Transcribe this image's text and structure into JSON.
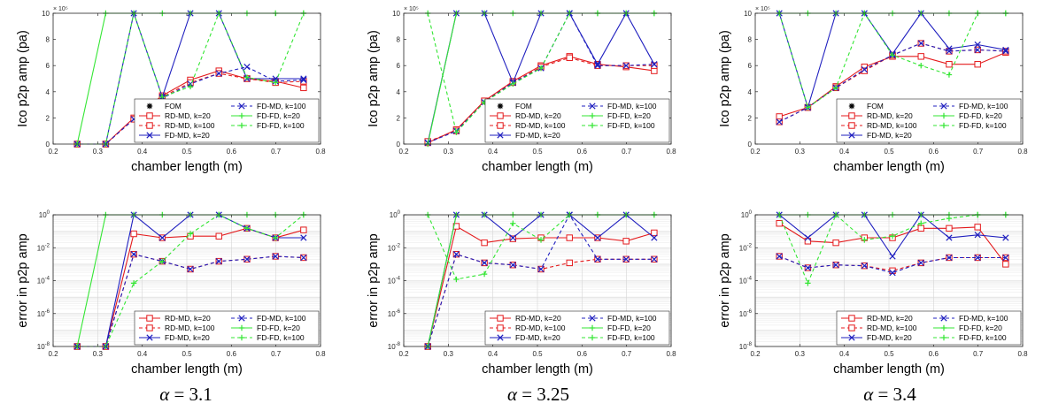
{
  "figure": {
    "captions": [
      {
        "symbol": "α",
        "value": "= 3.1"
      },
      {
        "symbol": "α",
        "value": "= 3.25"
      },
      {
        "symbol": "α",
        "value": "= 3.4"
      }
    ]
  },
  "styles": {
    "RD-MD, k=20": {
      "color": "#e41a1c",
      "dash": "solid",
      "marker": "square"
    },
    "RD-MD, k=100": {
      "color": "#e41a1c",
      "dash": "dashed",
      "marker": "square"
    },
    "FD-MD, k=20": {
      "color": "#1f1fbf",
      "dash": "solid",
      "marker": "x"
    },
    "FD-MD, k=100": {
      "color": "#1f1fbf",
      "dash": "dashed",
      "marker": "x"
    },
    "FD-FD, k=20": {
      "color": "#33e633",
      "dash": "solid",
      "marker": "plus"
    },
    "FD-FD, k=100": {
      "color": "#33e633",
      "dash": "dashed",
      "marker": "plus"
    },
    "FOM": {
      "color": "#000000",
      "dash": "none",
      "marker": "asterisk"
    }
  },
  "chart_data": [
    {
      "type": "line",
      "panel": "top",
      "column": 0,
      "xlabel": "chamber length (m)",
      "ylabel": "Ico p2p amp (pa)",
      "exponent_label": "× 10⁵",
      "xlim": [
        0.2,
        0.8
      ],
      "ylim": [
        0,
        10
      ],
      "xticks": [
        "0.2",
        "0.3",
        "0.4",
        "0.5",
        "0.6",
        "0.7",
        "0.8"
      ],
      "yticks": [
        "0",
        "2",
        "4",
        "6",
        "8",
        "10"
      ],
      "legend": [
        "FOM",
        "FD-MD, k=100",
        "RD-MD, k=20",
        "FD-FD, k=20",
        "RD-MD, k=100",
        "FD-FD, k=100",
        "FD-MD, k=20"
      ],
      "legend_position": "lower-right",
      "x": [
        0.254,
        0.318,
        0.381,
        0.445,
        0.508,
        0.572,
        0.635,
        0.699,
        0.762
      ],
      "series": [
        {
          "name": "FOM",
          "values": [
            0,
            0,
            2.0,
            3.5,
            4.5,
            5.4,
            5.0,
            4.8,
            4.8
          ]
        },
        {
          "name": "RD-MD, k=20",
          "values": [
            0,
            0,
            2.0,
            3.7,
            4.9,
            5.6,
            5.0,
            4.8,
            4.3
          ]
        },
        {
          "name": "RD-MD, k=100",
          "values": [
            0,
            0,
            1.9,
            3.6,
            4.7,
            5.4,
            5.0,
            4.7,
            4.8
          ]
        },
        {
          "name": "FD-MD, k=20",
          "values": [
            0,
            0,
            10,
            3.6,
            10,
            10,
            5.0,
            5.0,
            5.0
          ]
        },
        {
          "name": "FD-MD, k=100",
          "values": [
            0,
            0,
            1.9,
            3.5,
            4.6,
            5.4,
            5.9,
            4.8,
            4.9
          ]
        },
        {
          "name": "FD-FD, k=20",
          "values": [
            0,
            10,
            10,
            10,
            10,
            10,
            10,
            10,
            10
          ]
        },
        {
          "name": "FD-FD, k=100",
          "values": [
            0,
            0,
            10,
            3.6,
            4.4,
            10,
            5.1,
            4.7,
            10
          ]
        }
      ]
    },
    {
      "type": "line",
      "panel": "top",
      "column": 1,
      "xlabel": "chamber length (m)",
      "ylabel": "Ico p2p amp (pa)",
      "exponent_label": "× 10⁵",
      "xlim": [
        0.2,
        0.8
      ],
      "ylim": [
        0,
        10
      ],
      "xticks": [
        "0.2",
        "0.3",
        "0.4",
        "0.5",
        "0.6",
        "0.7",
        "0.8"
      ],
      "yticks": [
        "0",
        "2",
        "4",
        "6",
        "8",
        "10"
      ],
      "legend": [
        "FOM",
        "FD-MD, k=100",
        "RD-MD, k=20",
        "FD-FD, k=20",
        "RD-MD, k=100",
        "FD-FD, k=100",
        "FD-MD, k=20"
      ],
      "legend_position": "lower-right",
      "x": [
        0.254,
        0.318,
        0.381,
        0.445,
        0.508,
        0.572,
        0.635,
        0.699,
        0.762
      ],
      "series": [
        {
          "name": "FOM",
          "values": [
            0.1,
            1.0,
            3.3,
            4.7,
            5.9,
            6.6,
            6.0,
            6.0,
            6.0
          ]
        },
        {
          "name": "RD-MD, k=20",
          "values": [
            0.1,
            1.1,
            3.3,
            4.8,
            6.0,
            6.7,
            6.1,
            5.9,
            5.6
          ]
        },
        {
          "name": "RD-MD, k=100",
          "values": [
            0.2,
            1.0,
            3.3,
            4.7,
            5.9,
            6.6,
            6.0,
            6.0,
            6.0
          ]
        },
        {
          "name": "FD-MD, k=20",
          "values": [
            0.1,
            10,
            10,
            4.7,
            10,
            10,
            6.1,
            10,
            6.1
          ]
        },
        {
          "name": "FD-MD, k=100",
          "values": [
            0.1,
            1.0,
            3.2,
            4.7,
            5.8,
            10,
            6.0,
            6.0,
            6.1
          ]
        },
        {
          "name": "FD-FD, k=20",
          "values": [
            0,
            10,
            10,
            10,
            10,
            10,
            10,
            10,
            10
          ]
        },
        {
          "name": "FD-FD, k=100",
          "values": [
            10,
            0.9,
            3.2,
            4.6,
            5.8,
            10,
            10,
            10,
            10
          ]
        }
      ]
    },
    {
      "type": "line",
      "panel": "top",
      "column": 2,
      "xlabel": "chamber length (m)",
      "ylabel": "Ico p2p amp (pa)",
      "exponent_label": "× 10⁵",
      "xlim": [
        0.2,
        0.8
      ],
      "ylim": [
        0,
        10
      ],
      "xticks": [
        "0.2",
        "0.3",
        "0.4",
        "0.5",
        "0.6",
        "0.7",
        "0.8"
      ],
      "yticks": [
        "0",
        "2",
        "4",
        "6",
        "8",
        "10"
      ],
      "legend": [
        "FOM",
        "FD-MD, k=100",
        "RD-MD, k=20",
        "FD-FD, k=20",
        "RD-MD, k=100",
        "FD-FD, k=100",
        "FD-MD, k=20"
      ],
      "legend_position": "lower-right",
      "x": [
        0.254,
        0.318,
        0.381,
        0.445,
        0.508,
        0.572,
        0.635,
        0.699,
        0.762
      ],
      "series": [
        {
          "name": "FOM",
          "values": [
            1.7,
            2.8,
            4.3,
            5.6,
            6.8,
            7.7,
            7.1,
            7.2,
            7.1
          ]
        },
        {
          "name": "RD-MD, k=20",
          "values": [
            2.1,
            2.8,
            4.4,
            5.9,
            6.7,
            6.7,
            6.1,
            6.1,
            7.0
          ]
        },
        {
          "name": "RD-MD, k=100",
          "values": [
            1.7,
            2.8,
            4.3,
            5.6,
            6.8,
            7.7,
            7.1,
            7.2,
            7.1
          ]
        },
        {
          "name": "FD-MD, k=20",
          "values": [
            10,
            2.8,
            10,
            10,
            6.9,
            10,
            7.3,
            7.6,
            7.2
          ]
        },
        {
          "name": "FD-MD, k=100",
          "values": [
            1.7,
            2.8,
            4.3,
            5.7,
            6.8,
            7.7,
            7.1,
            7.2,
            7.1
          ]
        },
        {
          "name": "FD-FD, k=20",
          "values": [
            10,
            10,
            10,
            10,
            10,
            10,
            10,
            10,
            10
          ]
        },
        {
          "name": "FD-FD, k=100",
          "values": [
            10,
            2.8,
            4.3,
            10,
            6.8,
            6.0,
            5.3,
            10,
            10
          ]
        }
      ]
    },
    {
      "type": "line",
      "panel": "bottom",
      "column": 0,
      "xlabel": "chamber length (m)",
      "ylabel": "error in p2p amp",
      "yscale": "log",
      "xlim": [
        0.2,
        0.8
      ],
      "ylim": [
        1e-08,
        1
      ],
      "xticks": [
        "0.2",
        "0.3",
        "0.4",
        "0.5",
        "0.6",
        "0.7",
        "0.8"
      ],
      "ytick_exponents": [
        -8,
        -6,
        -4,
        -2,
        0
      ],
      "legend": [
        "RD-MD, k=20",
        "FD-MD, k=100",
        "RD-MD, k=100",
        "FD-FD, k=20",
        "FD-MD, k=20",
        "FD-FD, k=100"
      ],
      "legend_position": "lower-right",
      "x": [
        0.254,
        0.318,
        0.381,
        0.445,
        0.508,
        0.572,
        0.635,
        0.699,
        0.762
      ],
      "series": [
        {
          "name": "RD-MD, k=20",
          "values": [
            1e-08,
            1e-08,
            0.07,
            0.04,
            0.05,
            0.05,
            0.15,
            0.04,
            0.12
          ]
        },
        {
          "name": "RD-MD, k=100",
          "values": [
            1e-08,
            1e-08,
            0.004,
            0.0015,
            0.0005,
            0.0015,
            0.002,
            0.003,
            0.0025
          ]
        },
        {
          "name": "FD-MD, k=20",
          "values": [
            1e-08,
            1e-08,
            1,
            0.04,
            1,
            1,
            0.15,
            0.04,
            0.04
          ]
        },
        {
          "name": "FD-MD, k=100",
          "values": [
            1e-08,
            1e-08,
            0.004,
            0.0015,
            0.0005,
            0.0015,
            0.002,
            0.003,
            0.0025
          ]
        },
        {
          "name": "FD-FD, k=20",
          "values": [
            1e-08,
            1,
            1,
            1,
            1,
            1,
            1,
            1,
            1
          ]
        },
        {
          "name": "FD-FD, k=100",
          "values": [
            1e-08,
            1e-08,
            7e-05,
            0.0015,
            0.07,
            1,
            0.15,
            0.04,
            1
          ]
        }
      ]
    },
    {
      "type": "line",
      "panel": "bottom",
      "column": 1,
      "xlabel": "chamber length (m)",
      "ylabel": "error in p2p amp",
      "yscale": "log",
      "xlim": [
        0.2,
        0.8
      ],
      "ylim": [
        1e-08,
        1
      ],
      "xticks": [
        "0.2",
        "0.3",
        "0.4",
        "0.5",
        "0.6",
        "0.7",
        "0.8"
      ],
      "ytick_exponents": [
        -8,
        -6,
        -4,
        -2,
        0
      ],
      "legend": [
        "RD-MD, k=20",
        "FD-MD, k=100",
        "RD-MD, k=100",
        "FD-FD, k=20",
        "FD-MD, k=20",
        "FD-FD, k=100"
      ],
      "legend_position": "lower-right",
      "x": [
        0.254,
        0.318,
        0.381,
        0.445,
        0.508,
        0.572,
        0.635,
        0.699,
        0.762
      ],
      "series": [
        {
          "name": "RD-MD, k=20",
          "values": [
            1e-08,
            0.2,
            0.02,
            0.035,
            0.04,
            0.04,
            0.04,
            0.025,
            0.08
          ]
        },
        {
          "name": "RD-MD, k=100",
          "values": [
            1e-08,
            0.004,
            0.0012,
            0.0009,
            0.0005,
            0.0012,
            0.002,
            0.002,
            0.002
          ]
        },
        {
          "name": "FD-MD, k=20",
          "values": [
            1e-08,
            1,
            1,
            0.04,
            1,
            1,
            0.04,
            1,
            0.04
          ]
        },
        {
          "name": "FD-MD, k=100",
          "values": [
            1e-08,
            0.004,
            0.0012,
            0.0009,
            0.0005,
            1,
            0.002,
            0.002,
            0.002
          ]
        },
        {
          "name": "FD-FD, k=20",
          "values": [
            1e-08,
            1,
            1,
            1,
            1,
            1,
            1,
            1,
            1
          ]
        },
        {
          "name": "FD-FD, k=100",
          "values": [
            1,
            0.00012,
            0.00025,
            0.3,
            0.03,
            1,
            1,
            1,
            1
          ]
        }
      ]
    },
    {
      "type": "line",
      "panel": "bottom",
      "column": 2,
      "xlabel": "chamber length (m)",
      "ylabel": "error in p2p amp",
      "yscale": "log",
      "xlim": [
        0.2,
        0.8
      ],
      "ylim": [
        1e-08,
        1
      ],
      "xticks": [
        "0.2",
        "0.3",
        "0.4",
        "0.5",
        "0.6",
        "0.7",
        "0.8"
      ],
      "ytick_exponents": [
        -8,
        -6,
        -4,
        -2,
        0
      ],
      "legend": [
        "RD-MD, k=20",
        "FD-MD, k=100",
        "RD-MD, k=100",
        "FD-FD, k=20",
        "FD-MD, k=20",
        "FD-FD, k=100"
      ],
      "legend_position": "lower-right",
      "x": [
        0.254,
        0.318,
        0.381,
        0.445,
        0.508,
        0.572,
        0.635,
        0.699,
        0.762
      ],
      "series": [
        {
          "name": "RD-MD, k=20",
          "values": [
            0.3,
            0.025,
            0.02,
            0.04,
            0.04,
            0.15,
            0.15,
            0.18,
            0.001
          ]
        },
        {
          "name": "RD-MD, k=100",
          "values": [
            0.003,
            0.0006,
            0.0009,
            0.0008,
            0.0004,
            0.0012,
            0.0025,
            0.0025,
            0.0025
          ]
        },
        {
          "name": "FD-MD, k=20",
          "values": [
            1,
            0.04,
            1,
            1,
            0.003,
            1,
            0.04,
            0.06,
            0.04
          ]
        },
        {
          "name": "FD-MD, k=100",
          "values": [
            0.003,
            0.0006,
            0.0009,
            0.0008,
            0.0003,
            0.0012,
            0.0025,
            0.0025,
            0.0025
          ]
        },
        {
          "name": "FD-FD, k=20",
          "values": [
            1,
            1,
            1,
            1,
            1,
            1,
            1,
            1,
            1
          ]
        },
        {
          "name": "FD-FD, k=100",
          "values": [
            1,
            7e-05,
            1,
            0.03,
            0.05,
            0.3,
            0.6,
            1,
            1
          ]
        }
      ]
    }
  ]
}
